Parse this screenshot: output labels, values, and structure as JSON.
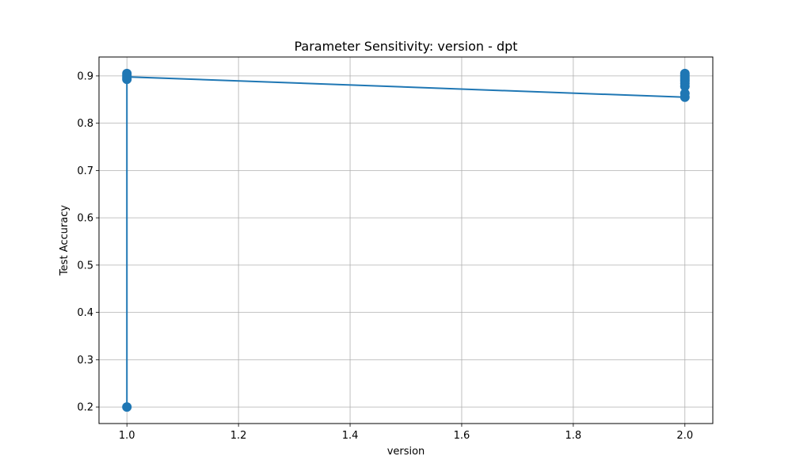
{
  "chart_data": {
    "type": "line",
    "title": "Parameter Sensitivity: version - dpt",
    "xlabel": "version",
    "ylabel": "Test Accuracy",
    "xlim": [
      0.95,
      2.05
    ],
    "ylim": [
      0.165,
      0.94
    ],
    "xticks": [
      1.0,
      1.2,
      1.4,
      1.6,
      1.8,
      2.0
    ],
    "xtick_labels": [
      "1.0",
      "1.2",
      "1.4",
      "1.6",
      "1.8",
      "2.0"
    ],
    "yticks": [
      0.2,
      0.3,
      0.4,
      0.5,
      0.6,
      0.7,
      0.8,
      0.9
    ],
    "ytick_labels": [
      "0.2",
      "0.3",
      "0.4",
      "0.5",
      "0.6",
      "0.7",
      "0.8",
      "0.9"
    ],
    "grid": true,
    "color": "#1f77b4",
    "series": [
      {
        "x": [
          1.0,
          1.0,
          1.0,
          1.0,
          1.0,
          2.0,
          2.0,
          2.0,
          2.0,
          2.0,
          2.0,
          2.0,
          2.0,
          2.0
        ],
        "y": [
          0.2,
          0.893,
          0.897,
          0.901,
          0.905,
          0.855,
          0.863,
          0.878,
          0.884,
          0.889,
          0.893,
          0.897,
          0.901,
          0.905
        ],
        "line_path": [
          [
            1.0,
            0.2
          ],
          [
            1.0,
            0.898
          ],
          [
            2.0,
            0.855
          ]
        ]
      }
    ]
  }
}
